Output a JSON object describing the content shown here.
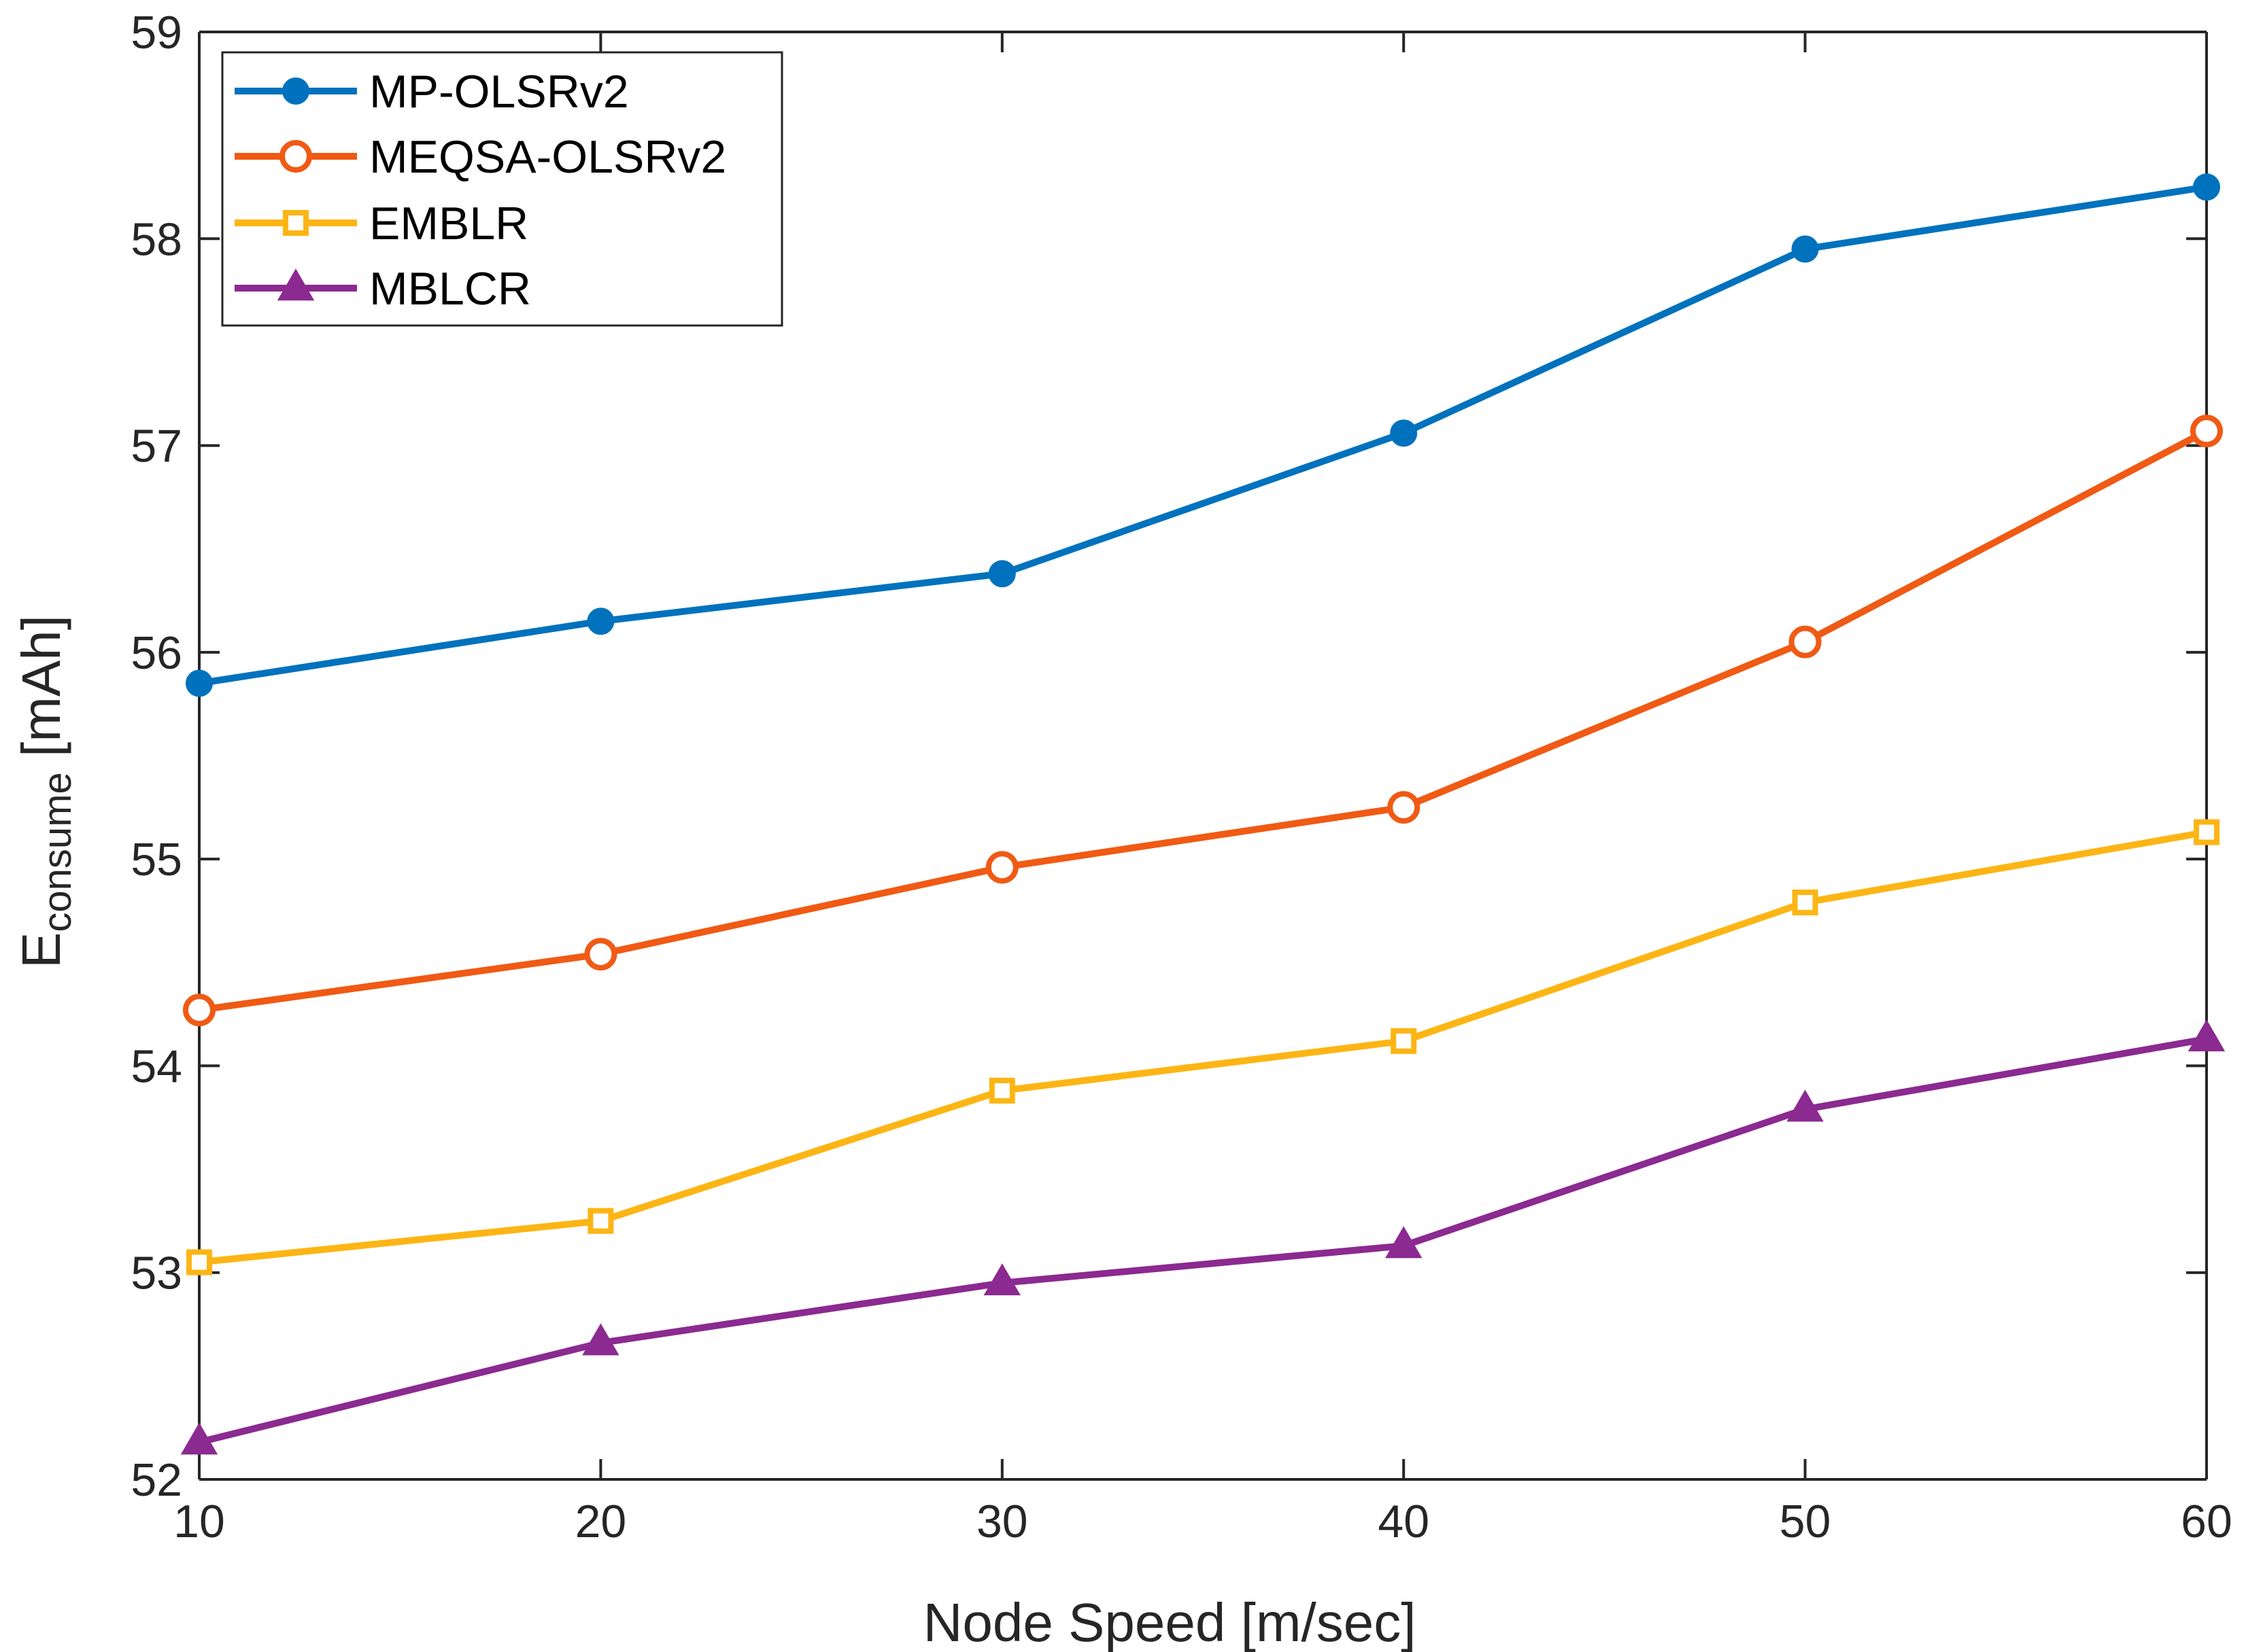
{
  "chart_data": {
    "type": "line",
    "title": "",
    "xlabel": "Node Speed [m/sec]",
    "ylabel_main": "E",
    "ylabel_sub": "consume",
    "ylabel_unit": " [mAh]",
    "x": [
      10,
      20,
      30,
      40,
      50,
      60
    ],
    "xlim": [
      10,
      60
    ],
    "ylim": [
      52,
      59
    ],
    "xticks": [
      10,
      20,
      30,
      40,
      50,
      60
    ],
    "yticks": [
      52,
      53,
      54,
      55,
      56,
      57,
      58,
      59
    ],
    "grid": false,
    "legend_position": "top-left",
    "series": [
      {
        "name": "MP-OLSRv2",
        "marker": "filled-circle",
        "color": "#0072BD",
        "values": [
          55.85,
          56.15,
          56.38,
          57.06,
          57.95,
          58.25
        ]
      },
      {
        "name": "MEQSA-OLSRv2",
        "marker": "open-circle",
        "color": "#F05A14",
        "values": [
          54.27,
          54.54,
          54.96,
          55.25,
          56.05,
          57.07
        ]
      },
      {
        "name": "EMBLR",
        "marker": "square",
        "color": "#FDB515",
        "values": [
          53.05,
          53.25,
          53.88,
          54.12,
          54.79,
          55.13
        ]
      },
      {
        "name": "MBLCR",
        "marker": "triangle",
        "color": "#8B2A90",
        "values": [
          52.18,
          52.66,
          52.95,
          53.13,
          53.79,
          54.13
        ]
      }
    ]
  }
}
